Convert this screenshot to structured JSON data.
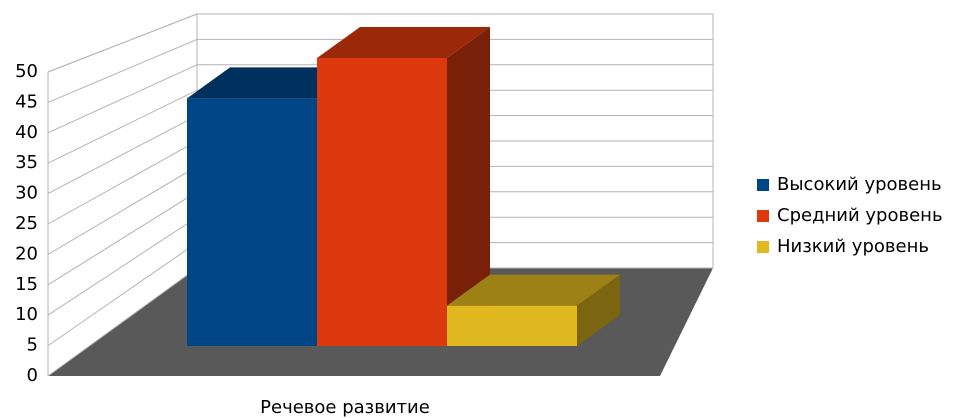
{
  "chart_data": {
    "type": "bar",
    "categories": [
      "Речевое развитие"
    ],
    "series": [
      {
        "name": "Высокий уровень",
        "color": "#004586",
        "values": [
          43
        ]
      },
      {
        "name": "Средний уровень",
        "color": "#dc3a0e",
        "values": [
          50
        ]
      },
      {
        "name": "Низкий уровень",
        "color": "#e0b81f",
        "values": [
          7
        ]
      }
    ],
    "ylim": [
      0,
      50
    ],
    "yticks": [
      0,
      5,
      10,
      15,
      20,
      25,
      30,
      35,
      40,
      45,
      50
    ],
    "grid": true,
    "legend": "right"
  }
}
